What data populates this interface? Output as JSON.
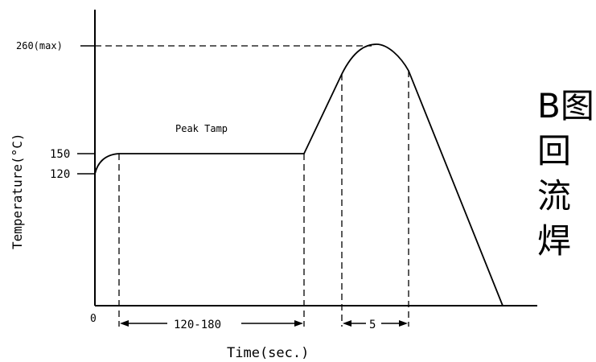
{
  "diagram": {
    "y_axis_label": "Temperature(°C)",
    "x_axis_label": "Time(sec.)",
    "origin_label": "0",
    "plateau_label": "Peak Tamp",
    "y_ticks": [
      {
        "label": "260(max)",
        "value": 260
      },
      {
        "label": "150",
        "value": 150
      },
      {
        "label": "120",
        "value": 120
      }
    ],
    "dimensions": [
      {
        "label": "120-180"
      },
      {
        "label": "5"
      }
    ]
  },
  "side_title": {
    "lines": [
      "B图",
      "回",
      "流",
      "焊"
    ]
  },
  "colors": {
    "line": "#000000",
    "background": "#ffffff"
  }
}
